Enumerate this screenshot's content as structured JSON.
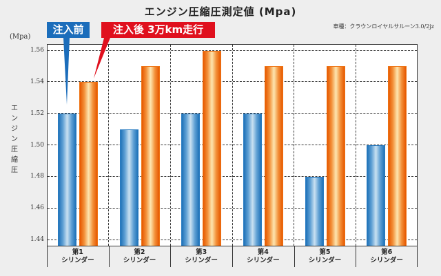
{
  "chart_data": {
    "type": "bar",
    "title": "エンジン圧縮圧測定値 (Mpa)",
    "subtitle": "車種：クラウンロイヤルサルーン3.0/2jz",
    "xlabel": "",
    "ylabel": "エンジン圧縮圧",
    "y_unit": "(Mpa)",
    "ylim": [
      1.435,
      1.564
    ],
    "yticks": [
      "1.56",
      "1.54",
      "1.52",
      "1.50",
      "1.48",
      "1.46",
      "1.44"
    ],
    "grid": true,
    "legend_position": "top-left",
    "categories": [
      {
        "line1": "第1",
        "line2": "シリンダー"
      },
      {
        "line1": "第2",
        "line2": "シリンダー"
      },
      {
        "line1": "第3",
        "line2": "シリンダー"
      },
      {
        "line1": "第4",
        "line2": "シリンダー"
      },
      {
        "line1": "第5",
        "line2": "シリンダー"
      },
      {
        "line1": "第6",
        "line2": "シリンダー"
      }
    ],
    "series": [
      {
        "name": "注入前",
        "color": "#1b6dbb",
        "values": [
          1.52,
          1.51,
          1.52,
          1.52,
          1.48,
          1.5
        ]
      },
      {
        "name": "注入後 3万km走行",
        "color": "#e0101e",
        "values": [
          1.54,
          1.55,
          1.56,
          1.55,
          1.55,
          1.55
        ]
      }
    ]
  },
  "labels": {
    "y_title_chars": [
      "エ",
      "ン",
      "ジ",
      "ン",
      "圧",
      "縮",
      "圧"
    ]
  }
}
